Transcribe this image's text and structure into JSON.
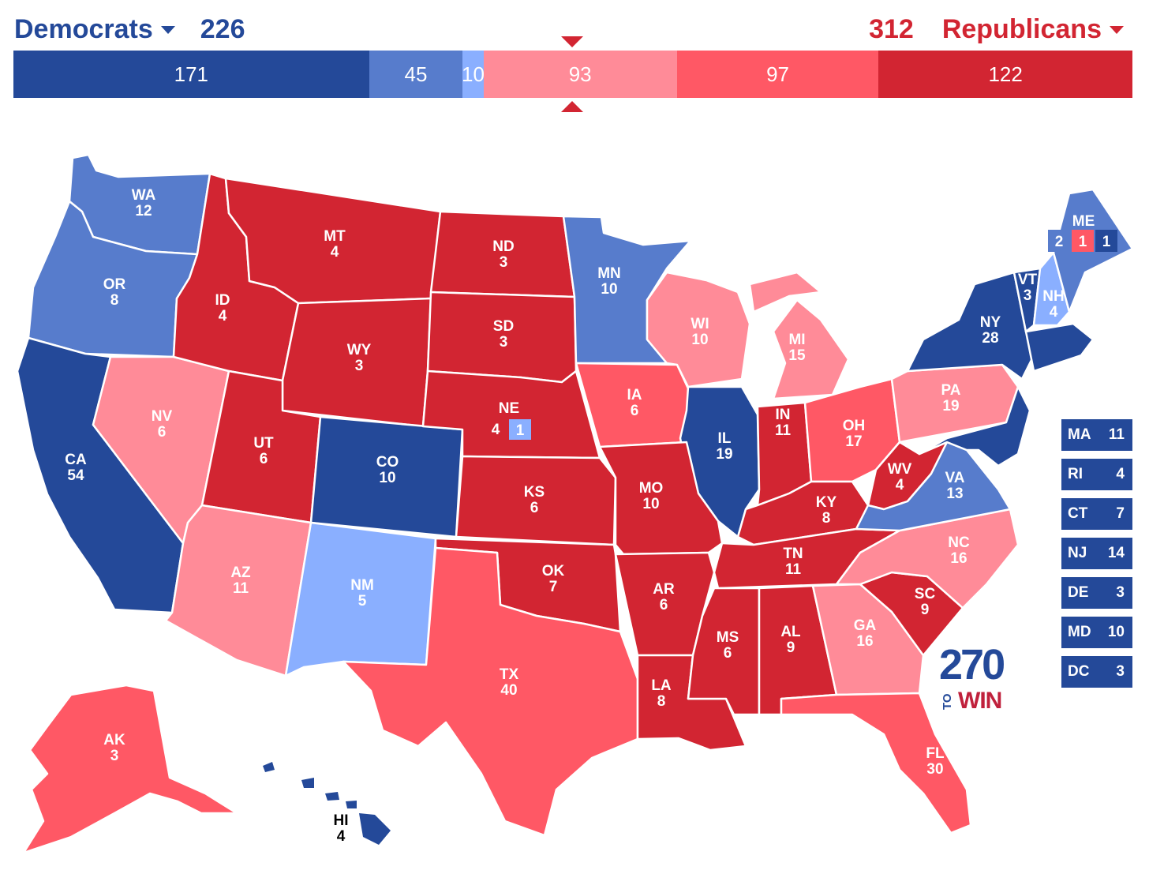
{
  "header": {
    "dem_label": "Democrats",
    "dem_total": "226",
    "rep_label": "Republicans",
    "rep_total": "312"
  },
  "colors": {
    "safe_d": "#244999",
    "likely_d": "#577ccc",
    "lean_d": "#8aafff",
    "tilt_r": "#ff8b98",
    "lean_r": "#ff5865",
    "safe_r": "#d22532"
  },
  "bar": [
    {
      "label": "171",
      "value": 171,
      "color": "#244999"
    },
    {
      "label": "45",
      "value": 45,
      "color": "#577ccc"
    },
    {
      "label": "10",
      "value": 10,
      "color": "#8aafff"
    },
    {
      "label": "93",
      "value": 93,
      "color": "#ff8b98"
    },
    {
      "label": "97",
      "value": 97,
      "color": "#ff5865"
    },
    {
      "label": "122",
      "value": 122,
      "color": "#d22532"
    }
  ],
  "states": {
    "WA": {
      "abbr": "WA",
      "ev": "12"
    },
    "OR": {
      "abbr": "OR",
      "ev": "8"
    },
    "CA": {
      "abbr": "CA",
      "ev": "54"
    },
    "NV": {
      "abbr": "NV",
      "ev": "6"
    },
    "ID": {
      "abbr": "ID",
      "ev": "4"
    },
    "MT": {
      "abbr": "MT",
      "ev": "4"
    },
    "WY": {
      "abbr": "WY",
      "ev": "3"
    },
    "UT": {
      "abbr": "UT",
      "ev": "6"
    },
    "AZ": {
      "abbr": "AZ",
      "ev": "11"
    },
    "CO": {
      "abbr": "CO",
      "ev": "10"
    },
    "NM": {
      "abbr": "NM",
      "ev": "5"
    },
    "ND": {
      "abbr": "ND",
      "ev": "3"
    },
    "SD": {
      "abbr": "SD",
      "ev": "3"
    },
    "NE": {
      "abbr": "NE",
      "ev": "4",
      "district": "1"
    },
    "KS": {
      "abbr": "KS",
      "ev": "6"
    },
    "OK": {
      "abbr": "OK",
      "ev": "7"
    },
    "TX": {
      "abbr": "TX",
      "ev": "40"
    },
    "MN": {
      "abbr": "MN",
      "ev": "10"
    },
    "IA": {
      "abbr": "IA",
      "ev": "6"
    },
    "MO": {
      "abbr": "MO",
      "ev": "10"
    },
    "AR": {
      "abbr": "AR",
      "ev": "6"
    },
    "LA": {
      "abbr": "LA",
      "ev": "8"
    },
    "WI": {
      "abbr": "WI",
      "ev": "10"
    },
    "IL": {
      "abbr": "IL",
      "ev": "19"
    },
    "MI": {
      "abbr": "MI",
      "ev": "15"
    },
    "IN": {
      "abbr": "IN",
      "ev": "11"
    },
    "OH": {
      "abbr": "OH",
      "ev": "17"
    },
    "KY": {
      "abbr": "KY",
      "ev": "8"
    },
    "TN": {
      "abbr": "TN",
      "ev": "11"
    },
    "MS": {
      "abbr": "MS",
      "ev": "6"
    },
    "AL": {
      "abbr": "AL",
      "ev": "9"
    },
    "GA": {
      "abbr": "GA",
      "ev": "16"
    },
    "FL": {
      "abbr": "FL",
      "ev": "30"
    },
    "SC": {
      "abbr": "SC",
      "ev": "9"
    },
    "NC": {
      "abbr": "NC",
      "ev": "16"
    },
    "VA": {
      "abbr": "VA",
      "ev": "13"
    },
    "WV": {
      "abbr": "WV",
      "ev": "4"
    },
    "PA": {
      "abbr": "PA",
      "ev": "19"
    },
    "NY": {
      "abbr": "NY",
      "ev": "28"
    },
    "VT": {
      "abbr": "VT",
      "ev": "3"
    },
    "NH": {
      "abbr": "NH",
      "ev": "4"
    },
    "ME": {
      "abbr": "ME",
      "ev_split": [
        "2",
        "1",
        "1"
      ]
    },
    "AK": {
      "abbr": "AK",
      "ev": "3"
    },
    "HI": {
      "abbr": "HI",
      "ev": "4"
    }
  },
  "small_states": [
    {
      "abbr": "MA",
      "ev": "11"
    },
    {
      "abbr": "RI",
      "ev": "4"
    },
    {
      "abbr": "CT",
      "ev": "7"
    },
    {
      "abbr": "NJ",
      "ev": "14"
    },
    {
      "abbr": "DE",
      "ev": "3"
    },
    {
      "abbr": "MD",
      "ev": "10"
    },
    {
      "abbr": "DC",
      "ev": "3"
    }
  ],
  "logo": {
    "num": "270",
    "to": "TO",
    "win": "WIN"
  }
}
